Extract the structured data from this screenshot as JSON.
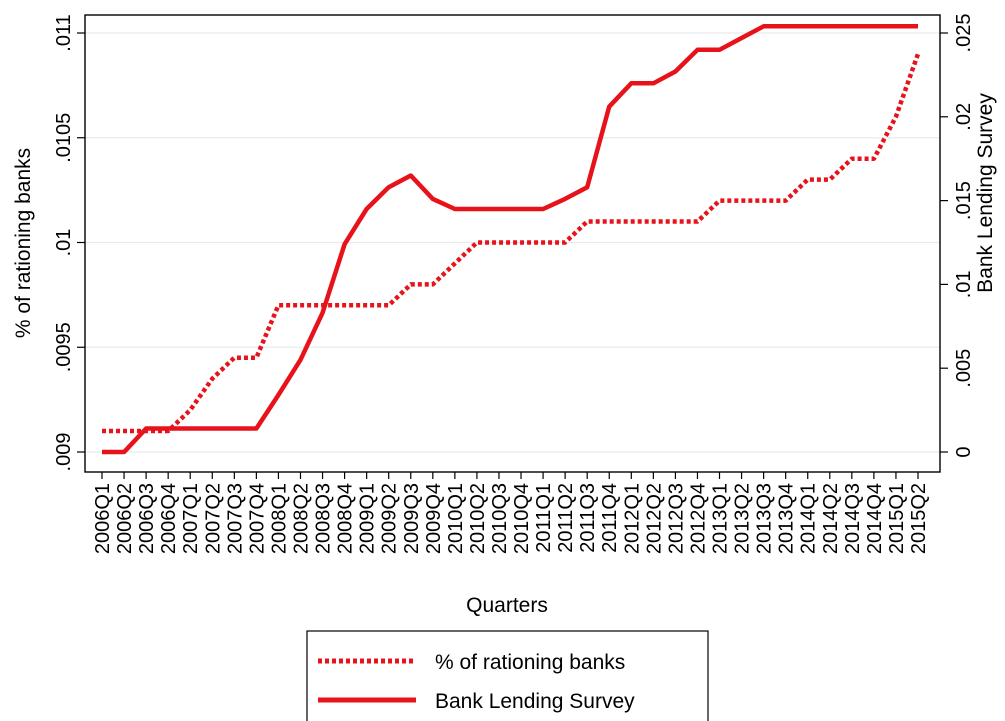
{
  "chart_data": {
    "type": "line",
    "title": "",
    "xlabel": "Quarters",
    "ylabel_left": "% of rationing banks",
    "ylabel_right": "Bank Lending Survey",
    "x": [
      "2006Q1",
      "2006Q2",
      "2006Q3",
      "2006Q4",
      "2007Q1",
      "2007Q2",
      "2007Q3",
      "2007Q4",
      "2008Q1",
      "2008Q2",
      "2008Q3",
      "2008Q4",
      "2009Q1",
      "2009Q2",
      "2009Q3",
      "2009Q4",
      "2010Q1",
      "2010Q2",
      "2010Q3",
      "2010Q4",
      "2011Q1",
      "2011Q2",
      "2011Q3",
      "2011Q4",
      "2012Q1",
      "2012Q2",
      "2012Q3",
      "2012Q4",
      "2013Q1",
      "2013Q2",
      "2013Q3",
      "2013Q4",
      "2014Q1",
      "2014Q2",
      "2014Q3",
      "2014Q4",
      "2015Q1",
      "2015Q2"
    ],
    "y_left": {
      "range": [
        0.009,
        0.011
      ],
      "ticks": [
        0.009,
        0.0095,
        0.01,
        0.0105,
        0.011
      ],
      "tick_labels": [
        ".009",
        ".0095",
        ".01",
        ".0105",
        ".011"
      ]
    },
    "y_right": {
      "range": [
        0,
        0.025
      ],
      "ticks": [
        0,
        0.005,
        0.01,
        0.015,
        0.02,
        0.025
      ],
      "tick_labels": [
        "0",
        ".005",
        ".01",
        ".015",
        ".02",
        ".025"
      ]
    },
    "series": [
      {
        "name": "% of rationing banks",
        "axis": "left",
        "style": "dotted",
        "color": "#e8131a",
        "values": [
          0.0091,
          0.0091,
          0.0091,
          0.0091,
          0.0092,
          0.00935,
          0.00945,
          0.00945,
          0.0097,
          0.0097,
          0.0097,
          0.0097,
          0.0097,
          0.0097,
          0.0098,
          0.0098,
          0.0099,
          0.01,
          0.01,
          0.01,
          0.01,
          0.01,
          0.0101,
          0.0101,
          0.0101,
          0.0101,
          0.0101,
          0.0101,
          0.0102,
          0.0102,
          0.0102,
          0.0102,
          0.0103,
          0.0103,
          0.0104,
          0.0104,
          0.0106,
          0.0109
        ]
      },
      {
        "name": "Bank Lending Survey",
        "axis": "right",
        "style": "solid",
        "color": "#e8131a",
        "values": [
          0.0,
          0.0,
          0.0014,
          0.0014,
          0.0014,
          0.0014,
          0.0014,
          0.0014,
          0.0034,
          0.0055,
          0.0083,
          0.0124,
          0.0145,
          0.0158,
          0.0165,
          0.0151,
          0.0145,
          0.0145,
          0.0145,
          0.0145,
          0.0145,
          0.0151,
          0.0158,
          0.0206,
          0.022,
          0.022,
          0.0227,
          0.024,
          0.024,
          0.0247,
          0.0254,
          0.0254,
          0.0254,
          0.0254,
          0.0254,
          0.0254,
          0.0254,
          0.0254
        ]
      }
    ],
    "grid": true,
    "legend_placement": "bottom-center"
  }
}
